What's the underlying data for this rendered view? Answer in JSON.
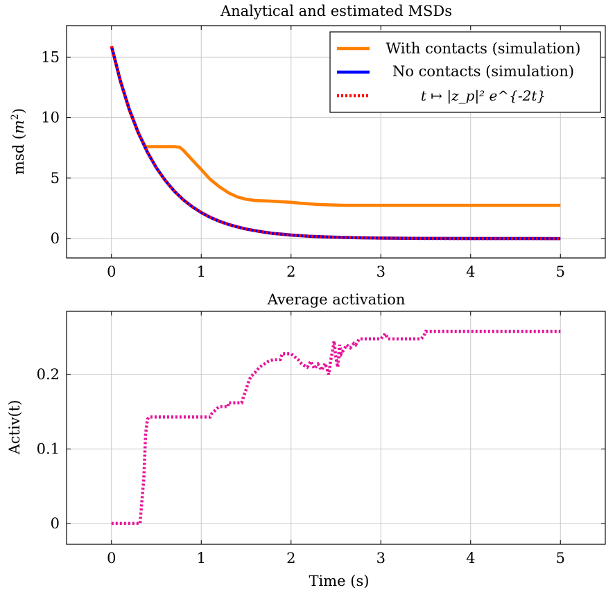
{
  "chart_data": [
    {
      "type": "line",
      "title": "Analytical and estimated MSDs",
      "xlabel": "",
      "ylabel": "msd",
      "ylabel_unit": "m",
      "ylabel_unit_exp": "2",
      "xlim": [
        -0.5,
        5.5
      ],
      "ylim": [
        -1.6,
        17.6
      ],
      "xticks": [
        0,
        1,
        2,
        3,
        4,
        5
      ],
      "yticks": [
        0,
        5,
        10,
        15
      ],
      "grid": true,
      "legend_position": "top-right",
      "series": [
        {
          "name": "With contacts (simulation)",
          "color": "#ff8000",
          "style": "solid",
          "x": [
            0,
            0.1,
            0.2,
            0.3,
            0.38,
            0.5,
            0.6,
            0.7,
            0.76,
            0.8,
            0.85,
            0.9,
            0.95,
            1.0,
            1.1,
            1.2,
            1.3,
            1.4,
            1.5,
            1.6,
            1.7,
            1.8,
            1.9,
            2.0,
            2.1,
            2.2,
            2.3,
            2.4,
            2.5,
            2.6,
            3.0,
            3.5,
            4.0,
            4.5,
            5.0
          ],
          "y": [
            15.9,
            13.0,
            10.6,
            8.7,
            7.6,
            7.6,
            7.6,
            7.6,
            7.55,
            7.3,
            6.9,
            6.5,
            6.1,
            5.7,
            4.9,
            4.3,
            3.8,
            3.45,
            3.25,
            3.15,
            3.12,
            3.08,
            3.04,
            3.0,
            2.93,
            2.87,
            2.82,
            2.79,
            2.77,
            2.75,
            2.75,
            2.75,
            2.75,
            2.75,
            2.75
          ]
        },
        {
          "name": "No contacts (simulation)",
          "color": "#0000ff",
          "style": "solid",
          "x": [
            0,
            0.1,
            0.2,
            0.3,
            0.4,
            0.5,
            0.6,
            0.7,
            0.8,
            0.9,
            1.0,
            1.1,
            1.2,
            1.3,
            1.4,
            1.5,
            1.6,
            1.7,
            1.8,
            1.9,
            2.0,
            2.2,
            2.4,
            2.6,
            2.8,
            3.0,
            3.5,
            4.0,
            4.5,
            5.0
          ],
          "y": [
            15.9,
            13.02,
            10.66,
            8.73,
            7.14,
            5.85,
            4.79,
            3.92,
            3.21,
            2.63,
            2.15,
            1.76,
            1.44,
            1.18,
            0.97,
            0.79,
            0.65,
            0.53,
            0.43,
            0.36,
            0.29,
            0.19,
            0.13,
            0.09,
            0.06,
            0.04,
            0.01,
            0.005,
            0.002,
            0.0007
          ]
        },
        {
          "name": "t ↦ |z_p|² e^{-2t}",
          "color": "#ff0000",
          "style": "dotted",
          "x": [
            0,
            0.1,
            0.2,
            0.3,
            0.4,
            0.5,
            0.6,
            0.7,
            0.8,
            0.9,
            1.0,
            1.1,
            1.2,
            1.3,
            1.4,
            1.5,
            1.6,
            1.7,
            1.8,
            1.9,
            2.0,
            2.2,
            2.4,
            2.6,
            2.8,
            3.0,
            3.5,
            4.0,
            4.5,
            5.0
          ],
          "y": [
            15.9,
            13.02,
            10.66,
            8.73,
            7.14,
            5.85,
            4.79,
            3.92,
            3.21,
            2.63,
            2.15,
            1.76,
            1.44,
            1.18,
            0.97,
            0.79,
            0.65,
            0.53,
            0.43,
            0.36,
            0.29,
            0.19,
            0.13,
            0.09,
            0.06,
            0.04,
            0.01,
            0.005,
            0.002,
            0.0007
          ]
        }
      ]
    },
    {
      "type": "line",
      "title": "Average activation",
      "xlabel": "Time (s)",
      "ylabel": "Activ(t)",
      "xlim": [
        -0.5,
        5.5
      ],
      "ylim": [
        -0.028,
        0.285
      ],
      "xticks": [
        0,
        1,
        2,
        3,
        4,
        5
      ],
      "yticks": [
        0,
        0.1,
        0.2
      ],
      "grid": true,
      "series": [
        {
          "name": "",
          "color": "#e6149a",
          "style": "dotted",
          "x": [
            0,
            0.32,
            0.32,
            0.36,
            0.38,
            0.4,
            0.42,
            1.1,
            1.12,
            1.18,
            1.2,
            1.3,
            1.3,
            1.45,
            1.47,
            1.5,
            1.52,
            1.55,
            1.6,
            1.65,
            1.7,
            1.75,
            1.8,
            1.88,
            1.9,
            2.0,
            2.08,
            2.12,
            2.18,
            2.22,
            2.26,
            2.3,
            2.34,
            2.38,
            2.42,
            2.44,
            2.46,
            2.48,
            2.5,
            2.52,
            2.54,
            2.56,
            2.6,
            2.62,
            2.66,
            2.7,
            2.72,
            2.76,
            2.8,
            2.9,
            3.0,
            3.05,
            3.08,
            3.1,
            3.45,
            3.48,
            3.5,
            5.0
          ],
          "y": [
            0.0,
            0.0,
            0.003,
            0.06,
            0.12,
            0.14,
            0.143,
            0.143,
            0.148,
            0.155,
            0.157,
            0.157,
            0.162,
            0.162,
            0.17,
            0.18,
            0.188,
            0.197,
            0.203,
            0.21,
            0.214,
            0.218,
            0.22,
            0.22,
            0.228,
            0.228,
            0.22,
            0.214,
            0.21,
            0.218,
            0.208,
            0.214,
            0.206,
            0.215,
            0.2,
            0.218,
            0.23,
            0.245,
            0.222,
            0.21,
            0.24,
            0.228,
            0.236,
            0.24,
            0.236,
            0.242,
            0.24,
            0.248,
            0.248,
            0.248,
            0.248,
            0.255,
            0.248,
            0.248,
            0.248,
            0.252,
            0.258,
            0.258
          ]
        }
      ]
    }
  ]
}
